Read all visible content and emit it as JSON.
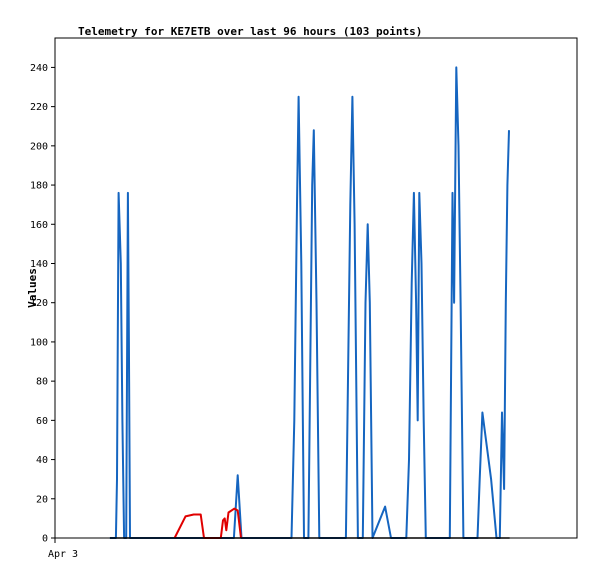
{
  "chart_data": {
    "type": "line",
    "title": "Telemetry for KE7ETB over last 96 hours (103 points)",
    "xlabel": "",
    "ylabel": "Values",
    "xlim": [
      0,
      96
    ],
    "ylim": [
      0,
      255
    ],
    "y_ticks": [
      0,
      20,
      40,
      60,
      80,
      100,
      120,
      140,
      160,
      180,
      200,
      220,
      240
    ],
    "x_ticks": [
      {
        "x": 0,
        "label": "Apr 3"
      }
    ],
    "grid": false,
    "legend": "none",
    "series": [
      {
        "color": "#1565c0",
        "points": [
          [
            10.1,
            0
          ],
          [
            11.2,
            0
          ],
          [
            11.4,
            30
          ],
          [
            11.7,
            176
          ],
          [
            12.1,
            140
          ],
          [
            12.4,
            60
          ],
          [
            12.7,
            0
          ],
          [
            13.1,
            0
          ],
          [
            13.4,
            176
          ],
          [
            13.6,
            100
          ],
          [
            13.8,
            0
          ],
          [
            32.9,
            0
          ],
          [
            33.6,
            32
          ],
          [
            34.3,
            0
          ],
          [
            43.5,
            0
          ],
          [
            44.0,
            60
          ],
          [
            44.5,
            170
          ],
          [
            44.8,
            225
          ],
          [
            45.3,
            140
          ],
          [
            45.8,
            0
          ],
          [
            46.6,
            0
          ],
          [
            47.3,
            180
          ],
          [
            47.6,
            208
          ],
          [
            48.1,
            120
          ],
          [
            48.6,
            0
          ],
          [
            53.5,
            0
          ],
          [
            54.3,
            170
          ],
          [
            54.7,
            225
          ],
          [
            55.1,
            160
          ],
          [
            55.7,
            0
          ],
          [
            56.6,
            0
          ],
          [
            57.1,
            120
          ],
          [
            57.5,
            160
          ],
          [
            57.9,
            120
          ],
          [
            58.4,
            0
          ],
          [
            60.7,
            16
          ],
          [
            61.8,
            0
          ],
          [
            64.6,
            0
          ],
          [
            65.1,
            40
          ],
          [
            65.6,
            130
          ],
          [
            66.0,
            176
          ],
          [
            66.4,
            120
          ],
          [
            66.7,
            60
          ],
          [
            67.0,
            176
          ],
          [
            67.4,
            140
          ],
          [
            67.8,
            60
          ],
          [
            68.2,
            0
          ],
          [
            72.6,
            0
          ],
          [
            73.1,
            176
          ],
          [
            73.4,
            120
          ],
          [
            73.8,
            240
          ],
          [
            74.2,
            200
          ],
          [
            74.6,
            120
          ],
          [
            75.1,
            0
          ],
          [
            77.7,
            0
          ],
          [
            78.1,
            30
          ],
          [
            78.6,
            64
          ],
          [
            80.2,
            30
          ],
          [
            81.2,
            0
          ],
          [
            81.8,
            0
          ],
          [
            82.2,
            64
          ],
          [
            82.6,
            25
          ],
          [
            82.9,
            120
          ],
          [
            83.2,
            180
          ],
          [
            83.5,
            208
          ]
        ]
      },
      {
        "color": "#e00000",
        "points": [
          [
            22.0,
            0
          ],
          [
            24.0,
            11
          ],
          [
            25.5,
            12
          ],
          [
            26.8,
            12
          ],
          [
            27.4,
            0
          ],
          [
            30.5,
            0
          ],
          [
            30.9,
            9
          ],
          [
            31.2,
            10
          ],
          [
            31.5,
            4
          ],
          [
            31.9,
            13
          ],
          [
            33.0,
            15
          ],
          [
            33.6,
            14
          ],
          [
            34.2,
            0
          ]
        ]
      },
      {
        "color": "#000000",
        "points": [
          [
            10.1,
            0
          ],
          [
            83.6,
            0
          ]
        ]
      }
    ]
  }
}
